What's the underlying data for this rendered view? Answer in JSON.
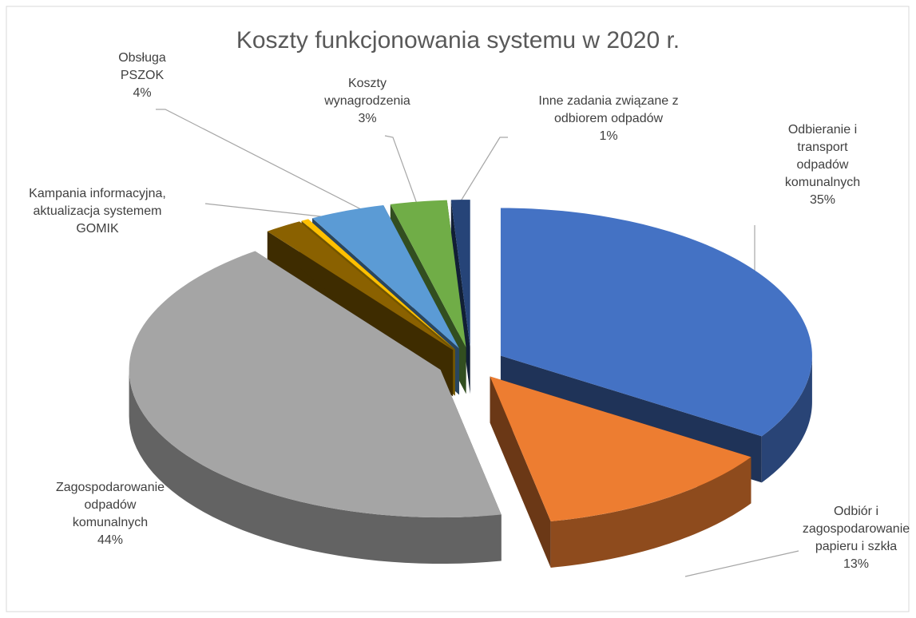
{
  "chart_data": {
    "type": "pie3d",
    "title": "Koszty funkcjonowania systemu w 2020 r.",
    "categories": [
      "Odbieranie i transport odpadów komunalnych",
      "Odbiór i zagospodarowanie papieru i szkła",
      "Zagospodarowanie odpadów komunalnych",
      null,
      "Kampania informacyjna, aktualizacja systemem GOMIK",
      "Obsługa PSZOK",
      "Koszty wynagrodzenia",
      "Inne zadania związane z odbiorem odpadów"
    ],
    "values": [
      35,
      13,
      44,
      2,
      0.4,
      4,
      3,
      1
    ],
    "value_labels": [
      "35%",
      "13%",
      "44%",
      null,
      null,
      "4%",
      "3%",
      "1%"
    ],
    "colors": [
      "#4472c4",
      "#ed7d31",
      "#a5a5a5",
      "#8a6100",
      "#ffc000",
      "#5b9bd5",
      "#70ad47",
      "#264478"
    ]
  }
}
